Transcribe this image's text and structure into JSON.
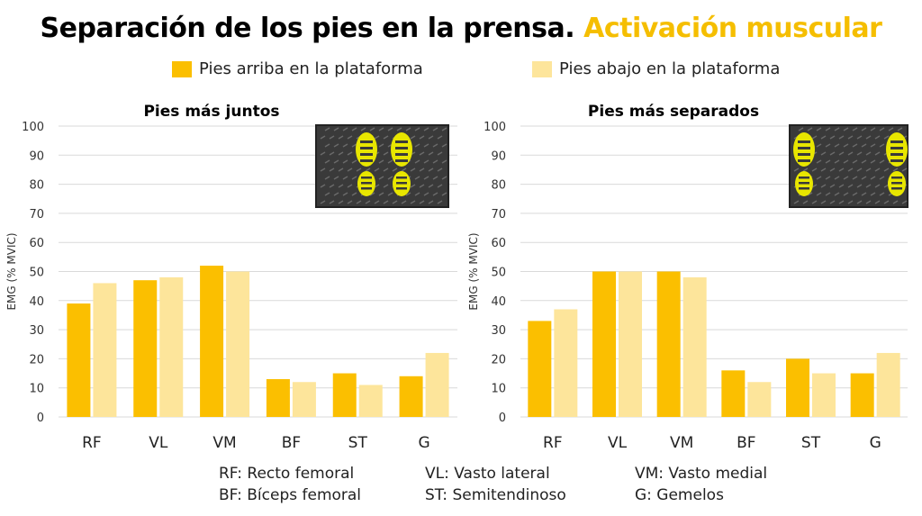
{
  "title": {
    "main": "Separación de los pies en la prensa.",
    "accent": "Activación muscular"
  },
  "legend": [
    {
      "label": "Pies arriba en la plataforma",
      "color": "#fbbf00"
    },
    {
      "label": "Pies abajo en la plataforma",
      "color": "#fde59b"
    }
  ],
  "colors": {
    "series1": "#fbbf00",
    "series2": "#fde59b",
    "grid": "#d9d9d9",
    "accent": "#f5be00"
  },
  "chart_data": [
    {
      "type": "bar",
      "title": "Pies más juntos",
      "ylabel": "EMG (% MVIC)",
      "ylim": [
        0,
        100
      ],
      "yticks": [
        0,
        10,
        20,
        30,
        40,
        50,
        60,
        70,
        80,
        90,
        100
      ],
      "grid": true,
      "categories": [
        "RF",
        "VL",
        "VM",
        "BF",
        "ST",
        "G"
      ],
      "series": [
        {
          "name": "Pies arriba en la plataforma",
          "values": [
            39,
            47,
            52,
            13,
            15,
            14
          ]
        },
        {
          "name": "Pies abajo en la plataforma",
          "values": [
            46,
            48,
            50,
            12,
            11,
            22
          ]
        }
      ],
      "inset": "feet-close-icon"
    },
    {
      "type": "bar",
      "title": "Pies más separados",
      "ylabel": "EMG (% MVIC)",
      "ylim": [
        0,
        100
      ],
      "yticks": [
        0,
        10,
        20,
        30,
        40,
        50,
        60,
        70,
        80,
        90,
        100
      ],
      "grid": true,
      "categories": [
        "RF",
        "VL",
        "VM",
        "BF",
        "ST",
        "G"
      ],
      "series": [
        {
          "name": "Pies arriba en la plataforma",
          "values": [
            33,
            50,
            50,
            16,
            20,
            15
          ]
        },
        {
          "name": "Pies abajo en la plataforma",
          "values": [
            37,
            50,
            48,
            12,
            15,
            22
          ]
        }
      ],
      "inset": "feet-wide-icon"
    }
  ],
  "footnotes": [
    "RF: Recto femoral",
    "VL: Vasto lateral",
    "VM: Vasto medial",
    "BF: Bíceps femoral",
    "ST: Semitendinoso",
    "G: Gemelos"
  ]
}
